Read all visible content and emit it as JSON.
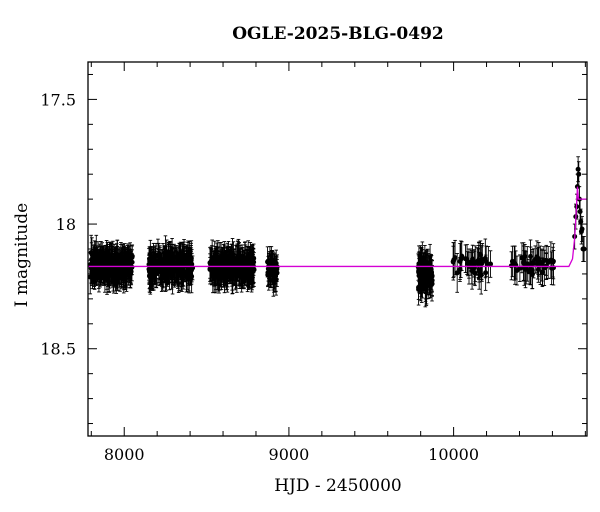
{
  "chart_data": {
    "type": "scatter",
    "title": "OGLE-2025-BLG-0492",
    "xlabel": "HJD - 2450000",
    "ylabel": "I magnitude",
    "xlim": [
      7780,
      10810
    ],
    "ylim": [
      18.85,
      17.35
    ],
    "y_inverted": true,
    "grid": false,
    "x_ticks": [
      8000,
      9000,
      10000
    ],
    "x_tick_labels": [
      "8000",
      "9000",
      "10000"
    ],
    "y_ticks": [
      17.5,
      18,
      18.5
    ],
    "y_tick_labels": [
      "17.5",
      "18",
      "18.5"
    ],
    "x_minor_step": 200,
    "y_minor_step": 0.1,
    "colors": {
      "points": "#000000",
      "model": "#d400d4"
    },
    "series": [
      {
        "kind": "observations",
        "seasons": [
          {
            "x_range": [
              7790,
              8050
            ],
            "y_mean": 18.17,
            "y_spread": 0.045,
            "n": 260,
            "err": 0.055
          },
          {
            "x_range": [
              8150,
              8420
            ],
            "y_mean": 18.17,
            "y_spread": 0.045,
            "n": 240,
            "err": 0.055
          },
          {
            "x_range": [
              8520,
              8790
            ],
            "y_mean": 18.17,
            "y_spread": 0.045,
            "n": 240,
            "err": 0.055
          },
          {
            "x_range": [
              8870,
              8930
            ],
            "y_mean": 18.18,
            "y_spread": 0.04,
            "n": 40,
            "err": 0.055
          },
          {
            "x_range": [
              9785,
              9870
            ],
            "y_mean": 18.2,
            "y_spread": 0.05,
            "n": 90,
            "err": 0.06
          },
          {
            "x_range": [
              9990,
              10240
            ],
            "y_mean": 18.16,
            "y_spread": 0.04,
            "n": 40,
            "err": 0.06
          },
          {
            "x_range": [
              10350,
              10610
            ],
            "y_mean": 18.17,
            "y_spread": 0.04,
            "n": 45,
            "err": 0.06
          }
        ],
        "rise_points": [
          {
            "x": 10735,
            "y": 18.05
          },
          {
            "x": 10742,
            "y": 17.97
          },
          {
            "x": 10748,
            "y": 17.93
          },
          {
            "x": 10752,
            "y": 17.85
          },
          {
            "x": 10756,
            "y": 17.78
          },
          {
            "x": 10760,
            "y": 17.8
          },
          {
            "x": 10764,
            "y": 17.9
          },
          {
            "x": 10768,
            "y": 17.95
          },
          {
            "x": 10772,
            "y": 17.99
          },
          {
            "x": 10776,
            "y": 18.03
          },
          {
            "x": 10780,
            "y": 18.02
          },
          {
            "x": 10786,
            "y": 18.1
          },
          {
            "x": 10792,
            "y": 18.1
          }
        ]
      },
      {
        "kind": "model",
        "baseline": 18.17,
        "points": [
          {
            "x": 7780,
            "y": 18.17
          },
          {
            "x": 10700,
            "y": 18.17
          },
          {
            "x": 10722,
            "y": 18.14
          },
          {
            "x": 10736,
            "y": 18.05
          },
          {
            "x": 10746,
            "y": 17.93
          },
          {
            "x": 10752,
            "y": 17.85
          },
          {
            "x": 10758,
            "y": 17.9
          },
          {
            "x": 10766,
            "y": 17.9
          },
          {
            "x": 10776,
            "y": 17.9
          },
          {
            "x": 10790,
            "y": 17.9
          },
          {
            "x": 10810,
            "y": 17.9
          }
        ]
      }
    ]
  }
}
